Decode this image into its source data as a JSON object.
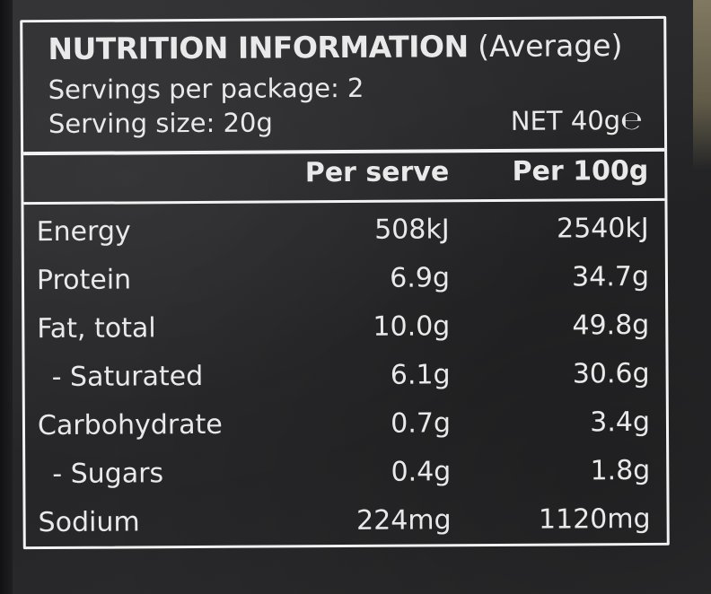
{
  "panel": {
    "title_bold": "NUTRITION INFORMATION",
    "title_light": "(Average)",
    "servings": "Servings per package: 2",
    "serving_size": "Serving size: 20g",
    "net": "NET 40g℮"
  },
  "columns": {
    "per_serve": "Per serve",
    "per_100g": "Per 100g"
  },
  "rows": [
    {
      "name": "Energy",
      "per_serve": "508kJ",
      "per_100g": "2540kJ"
    },
    {
      "name": "Protein",
      "per_serve": "6.9g",
      "per_100g": "34.7g"
    },
    {
      "name": "Fat, total",
      "per_serve": "10.0g",
      "per_100g": "49.8g"
    },
    {
      "name": "- Saturated",
      "per_serve": "6.1g",
      "per_100g": "30.6g"
    },
    {
      "name": "Carbohydrate",
      "per_serve": "0.7g",
      "per_100g": "3.4g"
    },
    {
      "name": "- Sugars",
      "per_serve": "0.4g",
      "per_100g": "1.8g"
    },
    {
      "name": "Sodium",
      "per_serve": "224mg",
      "per_100g": "1120mg"
    }
  ],
  "colors": {
    "background": "#2a2a2c",
    "text": "#e9e9e9",
    "border": "#f2f2f2"
  }
}
